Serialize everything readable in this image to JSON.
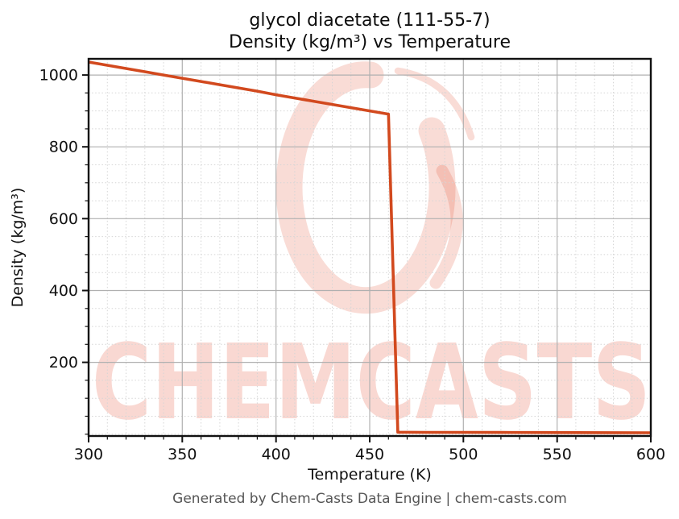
{
  "figure": {
    "footer": "Generated by Chem-Casts Data Engine | chem-casts.com",
    "watermark_text": "CHEMCASTS",
    "watermark_logo": "paint-swirl-ring-icon",
    "watermark_color": "#e23c1e",
    "line_color": "#d2491e"
  },
  "chart_data": {
    "type": "line",
    "title_line1": "glycol diacetate (111-55-7)",
    "title_line2": "Density (kg/m³) vs Temperature",
    "xlabel": "Temperature (K)",
    "ylabel": "Density (kg/m³)",
    "xlim": [
      300,
      600
    ],
    "ylim": [
      -5,
      1045
    ],
    "x_ticks": [
      300,
      350,
      400,
      450,
      500,
      550,
      600
    ],
    "y_ticks": [
      200,
      400,
      600,
      800,
      1000
    ],
    "x_minor_step": 10,
    "y_minor_step": 50,
    "grid": "major-solid, minor-dotted",
    "legend": false,
    "series": [
      {
        "name": "density",
        "color": "#d2491e",
        "points": [
          [
            300,
            1036
          ],
          [
            310,
            1027
          ],
          [
            320,
            1018
          ],
          [
            330,
            1009
          ],
          [
            340,
            1000
          ],
          [
            350,
            991
          ],
          [
            360,
            982
          ],
          [
            370,
            973
          ],
          [
            380,
            964
          ],
          [
            390,
            955
          ],
          [
            400,
            945
          ],
          [
            410,
            936
          ],
          [
            420,
            927
          ],
          [
            430,
            918
          ],
          [
            440,
            909
          ],
          [
            450,
            900
          ],
          [
            460,
            891
          ],
          [
            465,
            5.5
          ],
          [
            480,
            5.2
          ],
          [
            500,
            5.0
          ],
          [
            520,
            4.8
          ],
          [
            540,
            4.6
          ],
          [
            560,
            4.4
          ],
          [
            580,
            4.2
          ],
          [
            600,
            4.0
          ]
        ]
      }
    ]
  }
}
